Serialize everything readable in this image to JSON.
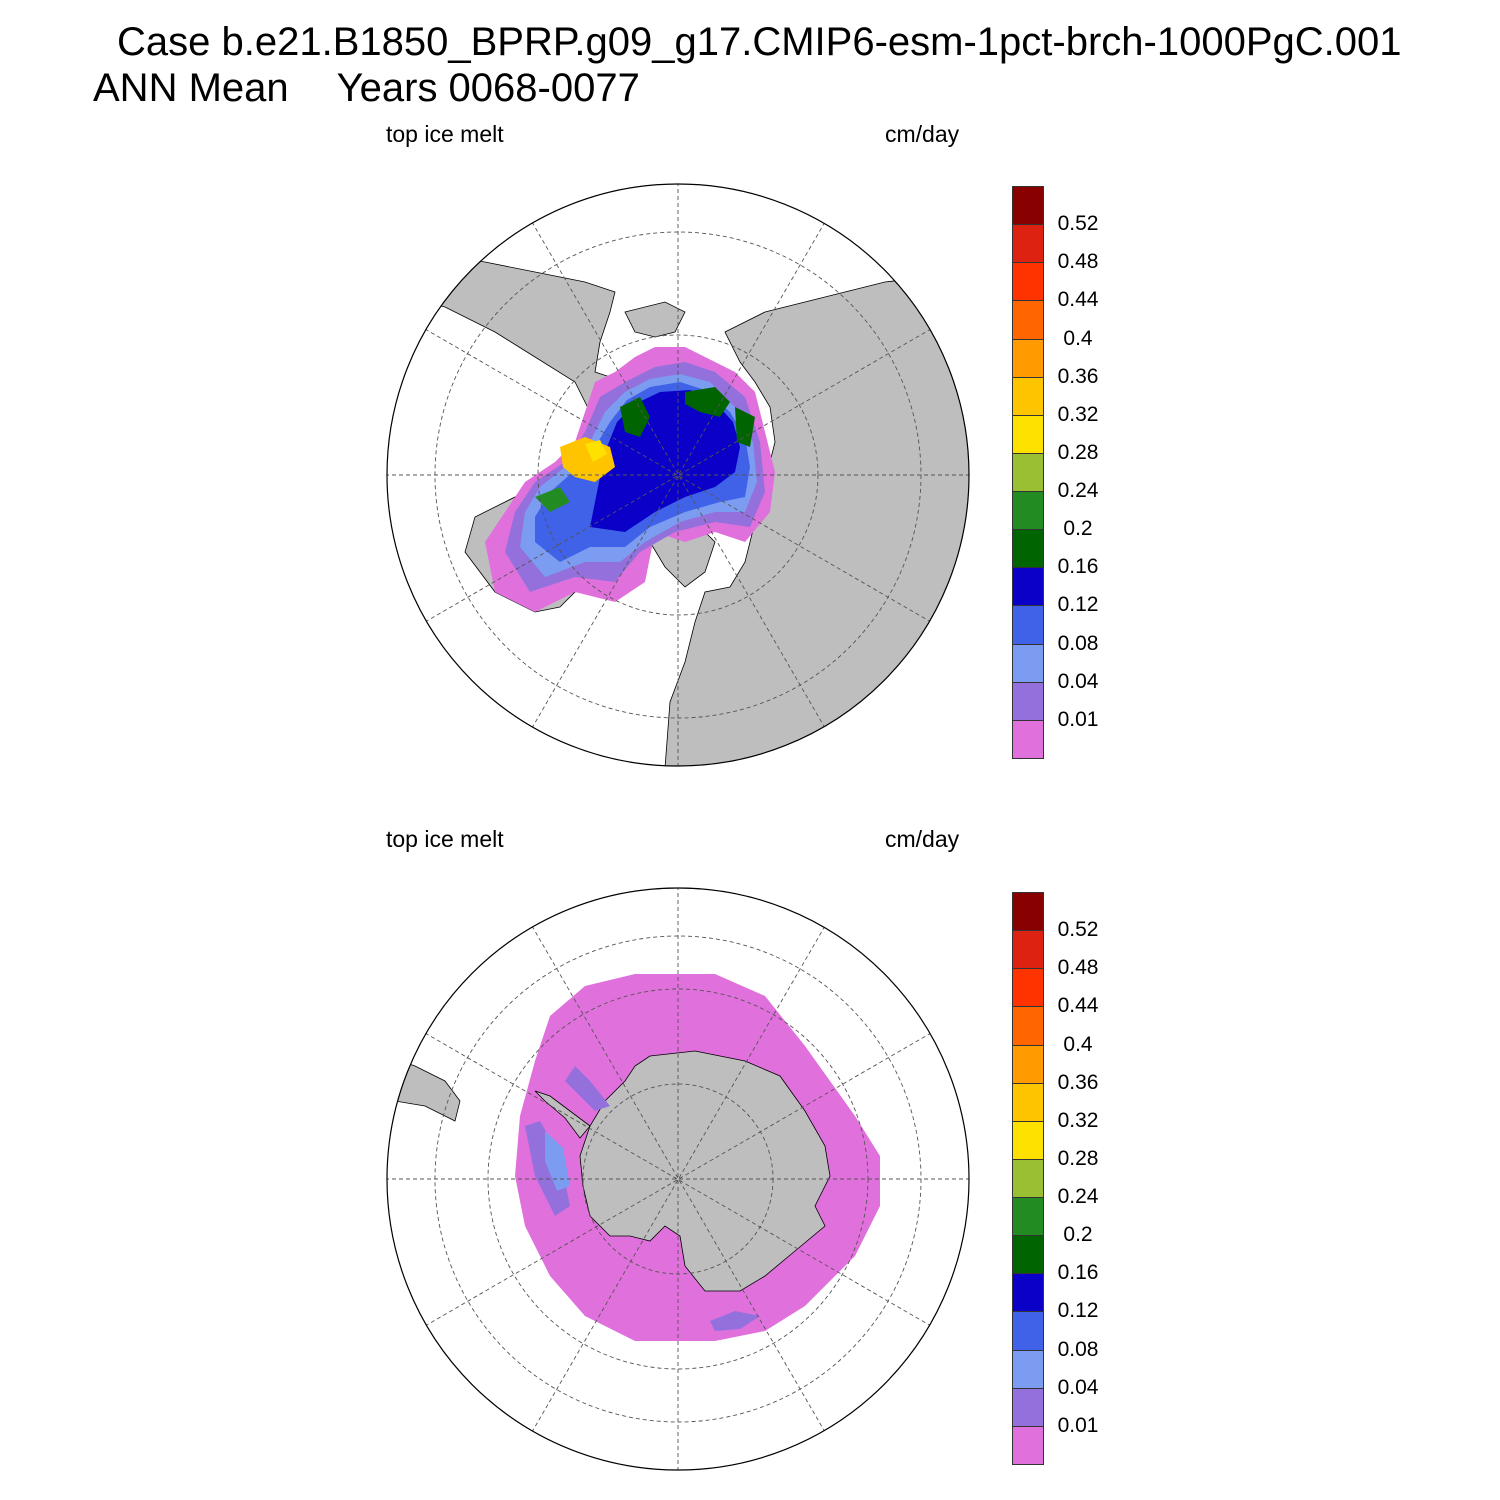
{
  "header": {
    "case_line": "Case b.e21.B1850_BPRP.g09_g17.CMIP6-esm-1pct-brch-1000PgC.001",
    "mean_label": "ANN Mean",
    "years_label": "Years 0068-0077"
  },
  "panels": [
    {
      "hemisphere": "north",
      "left_label": "top ice melt",
      "right_label": "cm/day"
    },
    {
      "hemisphere": "south",
      "left_label": "top ice melt",
      "right_label": "cm/day"
    }
  ],
  "colorbar": {
    "levels": [
      "0.01",
      "0.04",
      "0.08",
      "0.12",
      "0.16",
      "0.2",
      "0.24",
      "0.28",
      "0.32",
      "0.36",
      "0.4",
      "0.44",
      "0.48",
      "0.52"
    ],
    "colors": [
      "#e070dc",
      "#9370db",
      "#7b9cf0",
      "#3f62e8",
      "#0a00c8",
      "#006400",
      "#228b22",
      "#9abf32",
      "#ffe100",
      "#ffc400",
      "#ff9a00",
      "#ff6600",
      "#ff3300",
      "#dd2211",
      "#880000"
    ]
  },
  "colors": {
    "land": "#bebebe",
    "ocean": "#ffffff",
    "grid": "#555555"
  }
}
